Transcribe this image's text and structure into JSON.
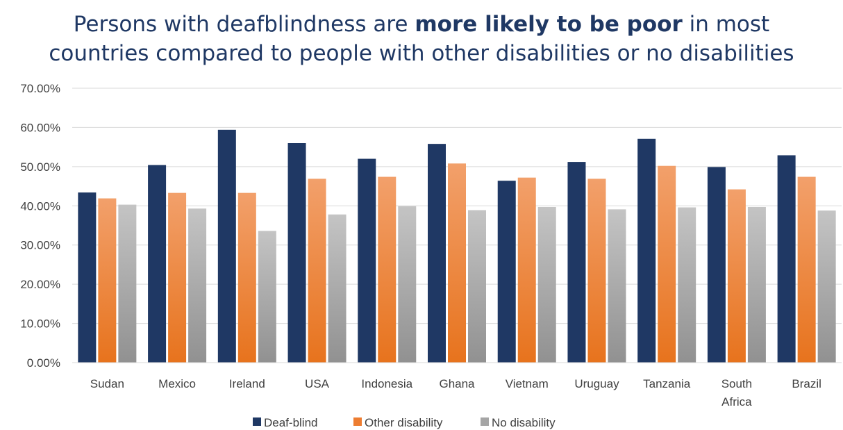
{
  "chart_data": {
    "type": "bar",
    "title_parts": {
      "line1_pre": "Persons with deafblindness are ",
      "line1_bold": "more likely to be poor",
      "line1_post": " in most",
      "line2": "countries compared to people with other disabilities or no disabilities"
    },
    "categories": [
      "Sudan",
      "Mexico",
      "Ireland",
      "USA",
      "Indonesia",
      "Ghana",
      "Vietnam",
      "Uruguay",
      "Tanzania",
      "South Africa",
      "Brazil"
    ],
    "category_lines": [
      [
        "Sudan"
      ],
      [
        "Mexico"
      ],
      [
        "Ireland"
      ],
      [
        "USA"
      ],
      [
        "Indonesia"
      ],
      [
        "Ghana"
      ],
      [
        "Vietnam"
      ],
      [
        "Uruguay"
      ],
      [
        "Tanzania"
      ],
      [
        "South",
        "Africa"
      ],
      [
        "Brazil"
      ]
    ],
    "series": [
      {
        "name": "Deaf-blind",
        "color": "#1f3864",
        "values": [
          43.4,
          50.4,
          59.4,
          56.0,
          52.0,
          55.8,
          46.4,
          51.2,
          57.1,
          49.9,
          52.9
        ]
      },
      {
        "name": "Other disability",
        "color": "#ed7d31",
        "values": [
          41.9,
          43.3,
          43.3,
          46.9,
          47.4,
          50.8,
          47.2,
          46.9,
          50.2,
          44.2,
          47.4
        ]
      },
      {
        "name": "No disability",
        "color": "#a5a5a5",
        "values": [
          40.3,
          39.3,
          33.6,
          37.8,
          39.9,
          38.9,
          39.7,
          39.1,
          39.6,
          39.7,
          38.8
        ]
      }
    ],
    "yticks": [
      "0.00%",
      "10.00%",
      "20.00%",
      "30.00%",
      "40.00%",
      "50.00%",
      "60.00%",
      "70.00%"
    ],
    "ylim": [
      0,
      70
    ],
    "grid": true,
    "legend_position": "bottom"
  }
}
